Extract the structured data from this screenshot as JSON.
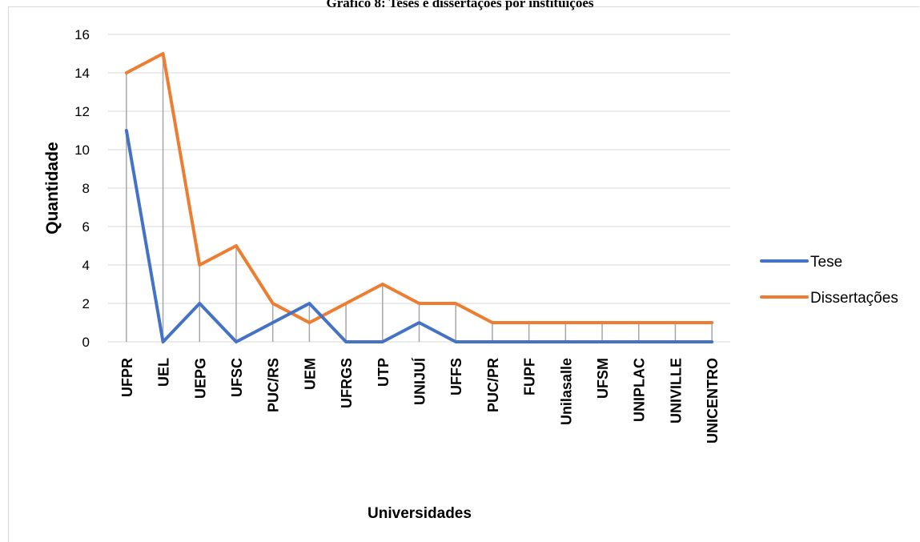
{
  "chart_data": {
    "type": "line",
    "title": "Gráfico 8: Teses e dissertações por instituições",
    "xlabel": "Universidades",
    "ylabel": "Quantidade",
    "ylim": [
      0,
      16
    ],
    "yticks": [
      0,
      2,
      4,
      6,
      8,
      10,
      12,
      14,
      16
    ],
    "grid": "horizontal",
    "legend_position": "right",
    "categories": [
      "UFPR",
      "UEL",
      "UEPG",
      "UFSC",
      "PUC/RS",
      "UEM",
      "UFRGS",
      "UTP",
      "UNIJUÍ",
      "UFFS",
      "PUC/PR",
      "FUPF",
      "Unilasalle",
      "UFSM",
      "UNIPLAC",
      "UNIVILLE",
      "UNICENTRO"
    ],
    "series": [
      {
        "name": "Tese",
        "color": "#4472c4",
        "values": [
          11,
          0,
          2,
          0,
          1,
          2,
          0,
          0,
          1,
          0,
          0,
          0,
          0,
          0,
          0,
          0,
          0
        ]
      },
      {
        "name": "Dissertações",
        "color": "#ed7d31",
        "values": [
          14,
          15,
          4,
          5,
          2,
          1,
          2,
          3,
          2,
          2,
          1,
          1,
          1,
          1,
          1,
          1,
          1
        ]
      }
    ]
  }
}
